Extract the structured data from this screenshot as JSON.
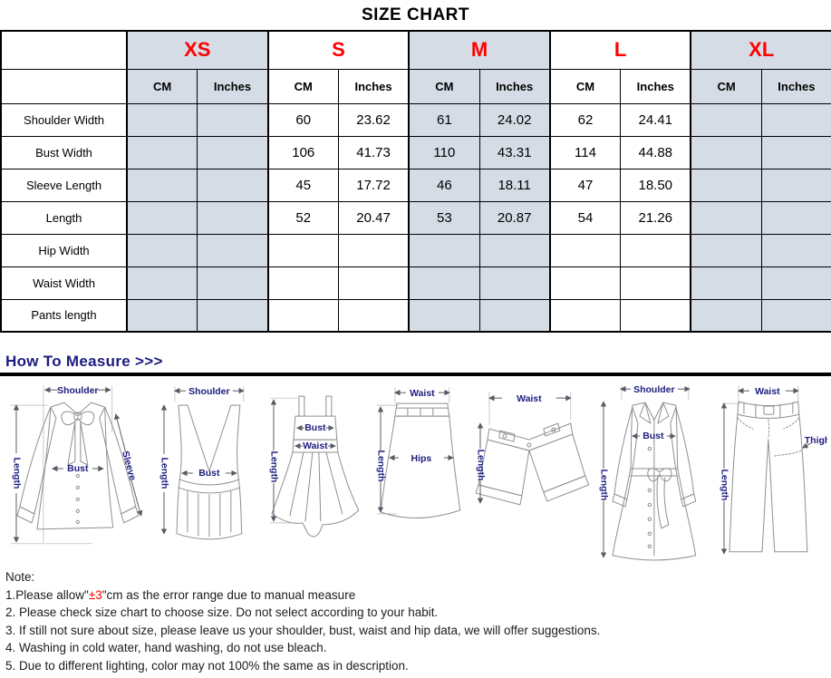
{
  "title": "SIZE CHART",
  "table": {
    "sizes": [
      {
        "label": "XS",
        "shaded": true
      },
      {
        "label": "S",
        "shaded": false
      },
      {
        "label": "M",
        "shaded": true
      },
      {
        "label": "L",
        "shaded": false
      },
      {
        "label": "XL",
        "shaded": true
      }
    ],
    "unit_headers": {
      "cm": "CM",
      "inches": "Inches"
    },
    "rows": [
      {
        "label": "Shoulder Width",
        "values": [
          "",
          "",
          "60",
          "23.62",
          "61",
          "24.02",
          "62",
          "24.41",
          "",
          ""
        ]
      },
      {
        "label": "Bust Width",
        "values": [
          "",
          "",
          "106",
          "41.73",
          "110",
          "43.31",
          "114",
          "44.88",
          "",
          ""
        ]
      },
      {
        "label": "Sleeve Length",
        "values": [
          "",
          "",
          "45",
          "17.72",
          "46",
          "18.11",
          "47",
          "18.50",
          "",
          ""
        ]
      },
      {
        "label": "Length",
        "values": [
          "",
          "",
          "52",
          "20.47",
          "53",
          "20.87",
          "54",
          "21.26",
          "",
          ""
        ]
      },
      {
        "label": "Hip Width",
        "values": [
          "",
          "",
          "",
          "",
          "",
          "",
          "",
          "",
          "",
          ""
        ]
      },
      {
        "label": "Waist Width",
        "values": [
          "",
          "",
          "",
          "",
          "",
          "",
          "",
          "",
          "",
          ""
        ]
      },
      {
        "label": "Pants length",
        "values": [
          "",
          "",
          "",
          "",
          "",
          "",
          "",
          "",
          "",
          ""
        ]
      }
    ]
  },
  "measure": {
    "heading": "How To Measure >>>",
    "garments": [
      {
        "name": "blouse",
        "labels": {
          "shoulder": "Shoulder",
          "length": "Length",
          "bust": "Bust",
          "sleeve": "Sleeve"
        }
      },
      {
        "name": "vest",
        "labels": {
          "shoulder": "Shoulder",
          "length": "Length",
          "bust": "Bust"
        }
      },
      {
        "name": "dress",
        "labels": {
          "length": "Length",
          "bust": "Bust",
          "waist": "Waist"
        }
      },
      {
        "name": "skirt",
        "labels": {
          "waist": "Waist",
          "length": "Length",
          "hips": "Hips"
        }
      },
      {
        "name": "shorts",
        "labels": {
          "waist": "Waist",
          "length": "Length"
        }
      },
      {
        "name": "coat",
        "labels": {
          "shoulder": "Shoulder",
          "length": "Length",
          "bust": "Bust"
        }
      },
      {
        "name": "pants",
        "labels": {
          "waist": "Waist",
          "length": "Length",
          "thigh": "Thigh"
        }
      }
    ]
  },
  "notes": {
    "title": "Note:",
    "line1_prefix": "1.Please allow\"",
    "line1_highlight": "±3",
    "line1_suffix": "\"cm as the error range due to manual measure",
    "line2": "2. Please check size chart to choose size. Do not select according to your habit.",
    "line3": "3. If still not sure about size, please leave us your shoulder, bust, waist and hip data, we will offer suggestions.",
    "line4": "4. Washing in cold water, hand washing, do not use bleach.",
    "line5": "5. Due to different lighting, color may not 100% the same as in description."
  },
  "colors": {
    "size_label": "#ff0000",
    "shaded_cell": "#d6dce5",
    "heading_navy": "#1c1c7e",
    "note_highlight": "#ff0000"
  }
}
